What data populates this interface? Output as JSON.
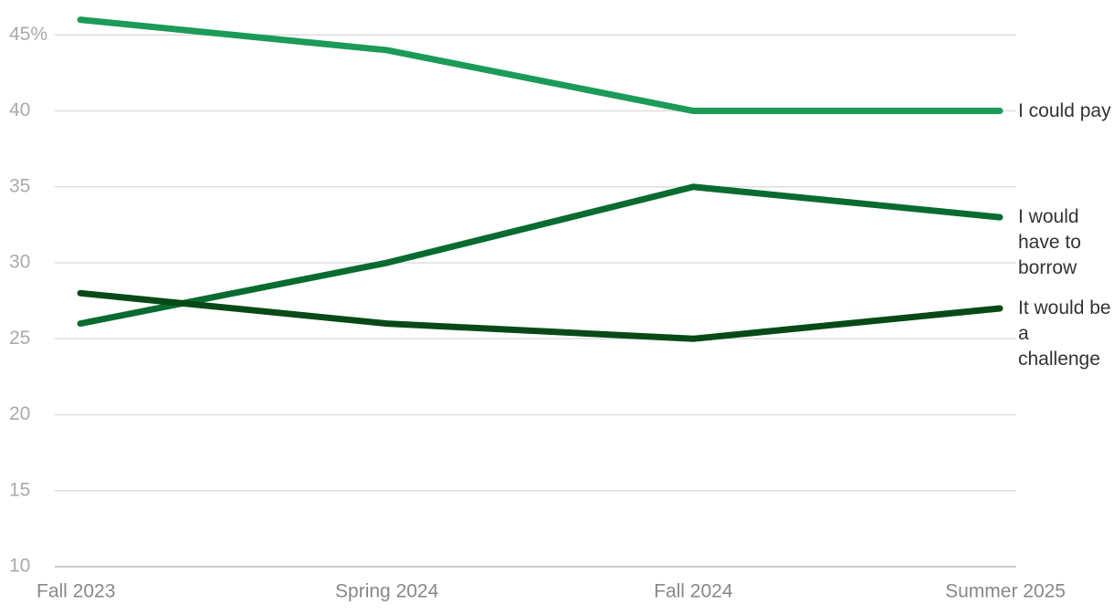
{
  "chart_data": {
    "type": "line",
    "categories": [
      "Fall 2023",
      "Spring 2024",
      "Fall 2024",
      "Summer 2025"
    ],
    "series": [
      {
        "name": "I could pay",
        "color": "#1b9b57",
        "values": [
          46,
          44,
          40,
          40
        ]
      },
      {
        "name": "I would have to borrow",
        "color": "#086b30",
        "values": [
          26,
          30,
          35,
          33
        ]
      },
      {
        "name": "It would be a challenge",
        "color": "#074a17",
        "values": [
          28,
          26,
          25,
          27
        ]
      }
    ],
    "ylim": [
      10,
      47
    ],
    "yticks": [
      10,
      15,
      20,
      25,
      30,
      35,
      40,
      {
        "value": 45,
        "label": "45%"
      }
    ],
    "grid": true
  }
}
